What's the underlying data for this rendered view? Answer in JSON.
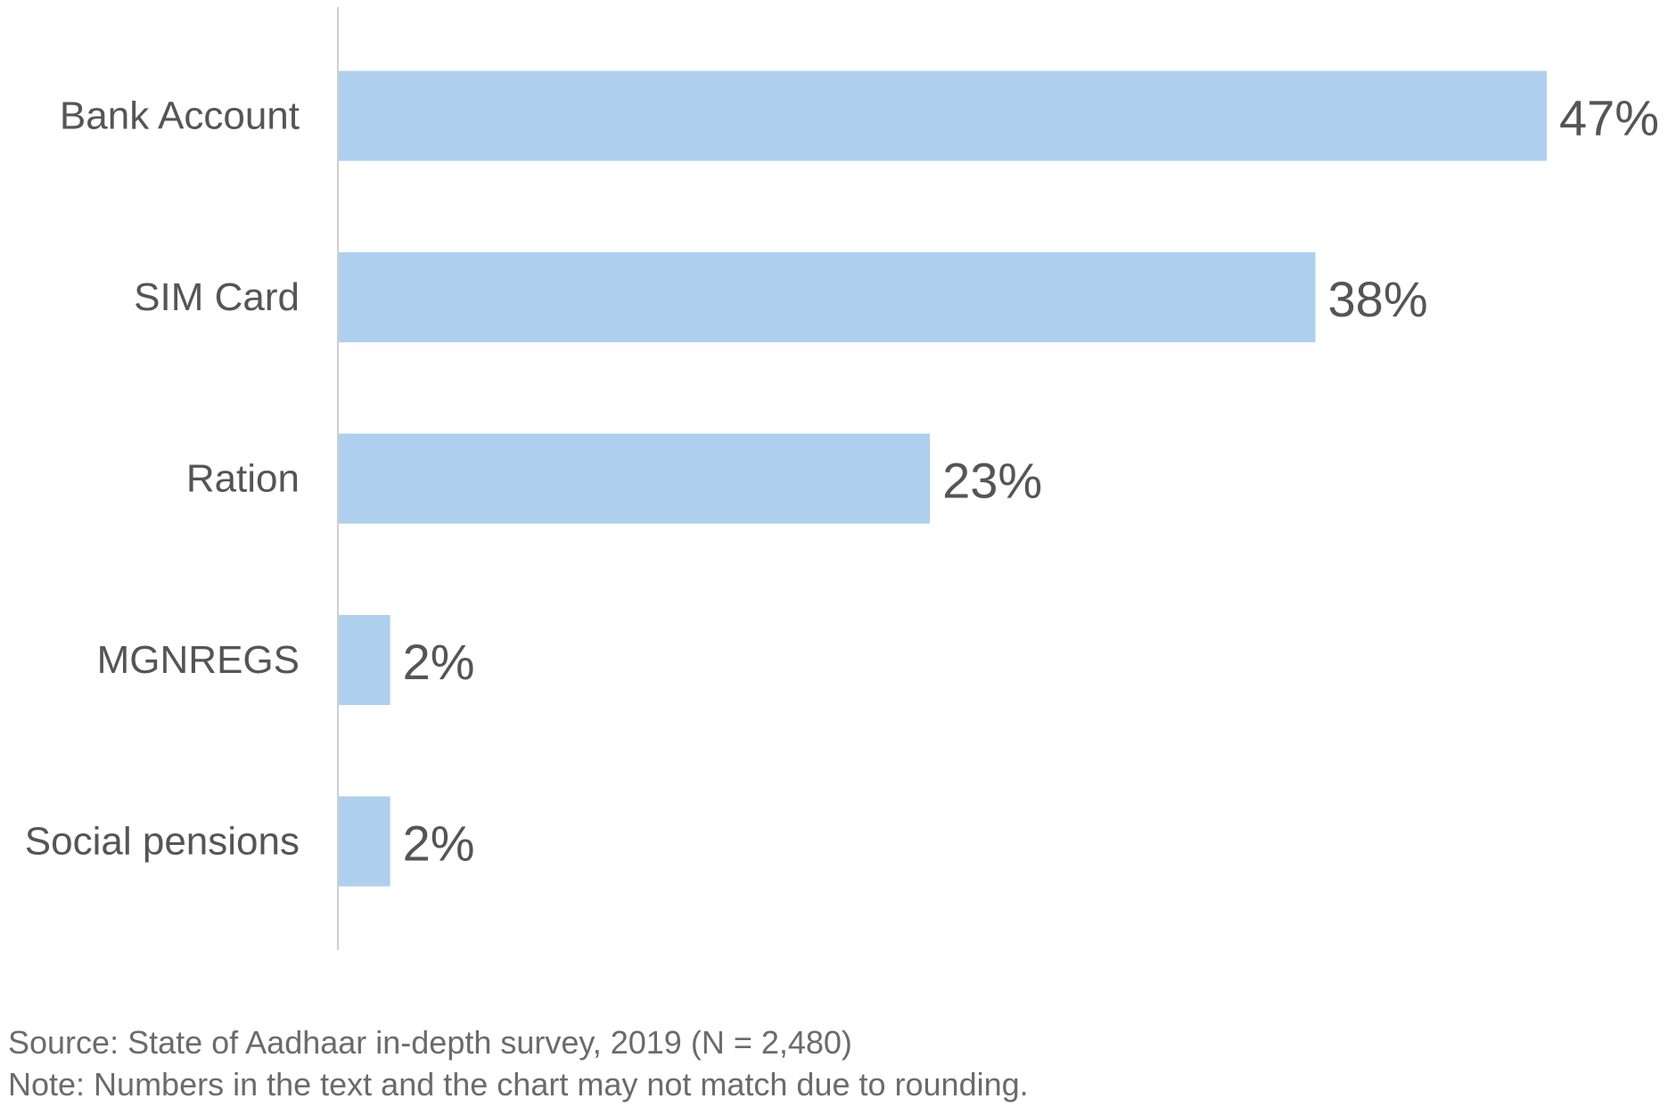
{
  "chart_data": {
    "type": "bar",
    "orientation": "horizontal",
    "categories": [
      "Bank Account",
      "SIM Card",
      "Ration",
      "MGNREGS",
      "Social pensions"
    ],
    "values": [
      47,
      38,
      23,
      2,
      2
    ],
    "value_labels": [
      "47%",
      "38%",
      "23%",
      "2%",
      "2%"
    ],
    "unit": "%",
    "xlim": [
      0,
      47
    ],
    "grid": false,
    "legend": "none",
    "bar_color": "#aed0ee",
    "axis_color": "#cfcfcf",
    "label_color": "#555555"
  },
  "notes": {
    "source": "Source: State of Aadhaar in-depth survey, 2019 (N = 2,480)",
    "rounding": "Note: Numbers in the text and the chart may not match due to rounding."
  }
}
